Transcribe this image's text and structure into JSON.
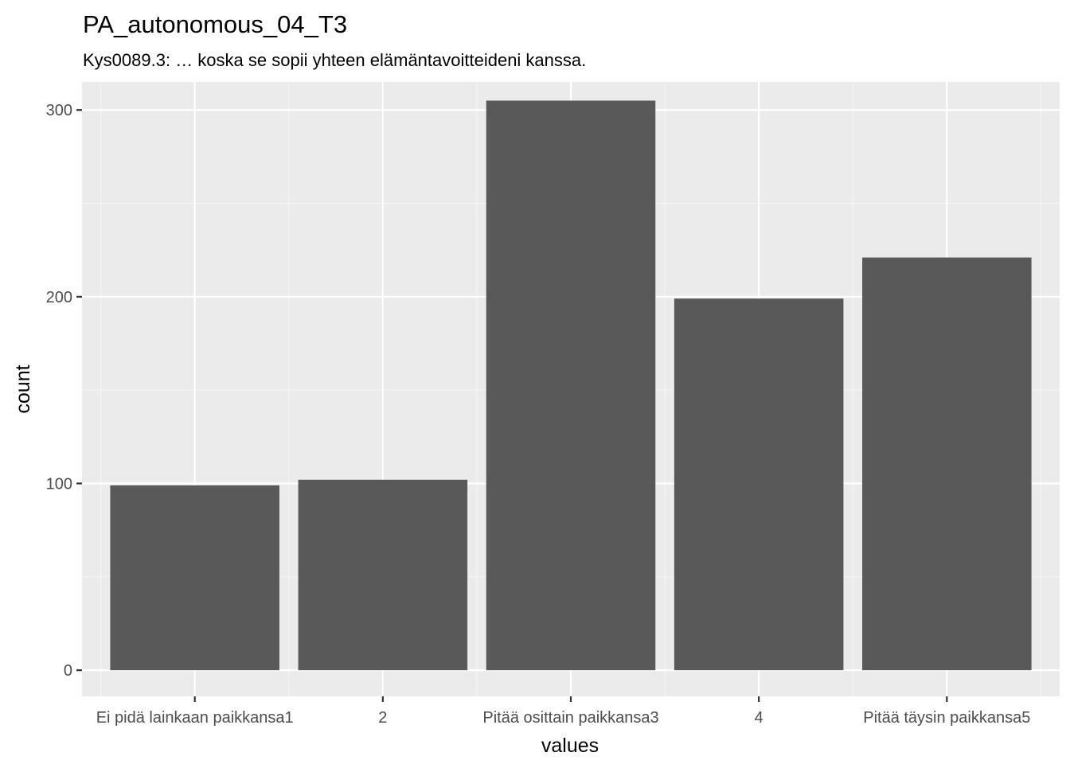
{
  "chart_data": {
    "type": "bar",
    "title": "PA_autonomous_04_T3",
    "subtitle": "Kys0089.3: … koska se sopii yhteen elämäntavoitteideni kanssa.",
    "xlabel": "values",
    "ylabel": "count",
    "categories": [
      "Ei pidä lainkaan paikkansa1",
      "2",
      "Pitää osittain paikkansa3",
      "4",
      "Pitää täysin paikkansa5"
    ],
    "values": [
      99,
      102,
      305,
      199,
      221
    ],
    "ylim": [
      -14,
      315
    ],
    "yticks": [
      0,
      100,
      200,
      300
    ],
    "grid": true,
    "legend": "none",
    "colors": {
      "panel_background": "#ebebeb",
      "grid_major": "#ffffff",
      "bar_fill": "#595959",
      "tick_text": "#4d4d4d"
    }
  }
}
